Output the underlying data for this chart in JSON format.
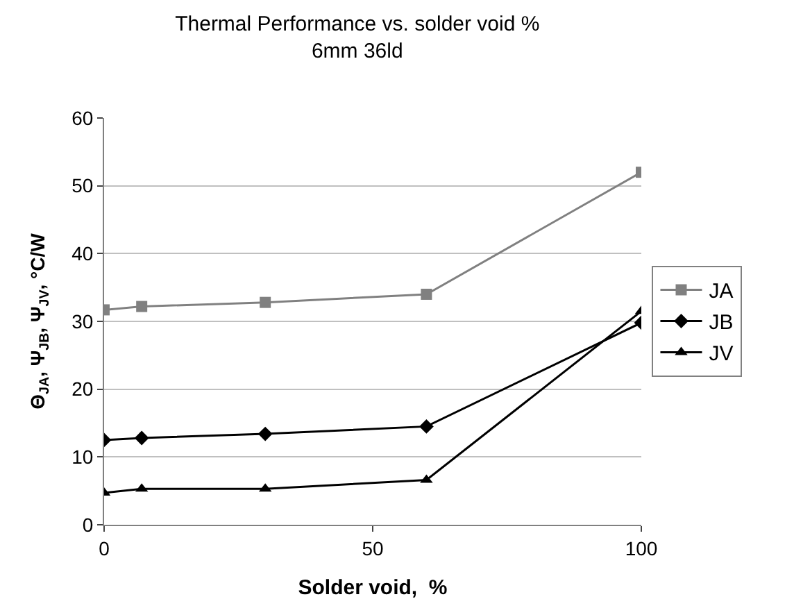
{
  "chart_data": {
    "type": "line",
    "title": "Thermal Performance vs. solder void %",
    "subtitle": "6mm 36ld",
    "xlabel": "Solder void,  %",
    "ylabel": "Θ$_{JA}$, Ψ$_{JB}$, Ψ$_{JV}$, °C/W",
    "x": [
      0,
      7,
      30,
      60,
      100
    ],
    "series": [
      {
        "name": "JA",
        "color": "#808080",
        "marker": "square",
        "values": [
          31.7,
          32.2,
          32.8,
          34,
          52
        ]
      },
      {
        "name": "JB",
        "color": "#000000",
        "marker": "diamond",
        "values": [
          12.5,
          12.8,
          13.4,
          14.5,
          29.8
        ]
      },
      {
        "name": "JV",
        "color": "#000000",
        "marker": "triangle",
        "values": [
          4.7,
          5.3,
          5.3,
          6.6,
          31.5
        ]
      }
    ],
    "xlim": [
      0,
      100
    ],
    "xticks": [
      0,
      50,
      100
    ],
    "ylim": [
      0,
      60
    ],
    "yticks": [
      0,
      10,
      20,
      30,
      40,
      50,
      60
    ],
    "grid": "y",
    "legend": "right",
    "line_style": "solid"
  }
}
